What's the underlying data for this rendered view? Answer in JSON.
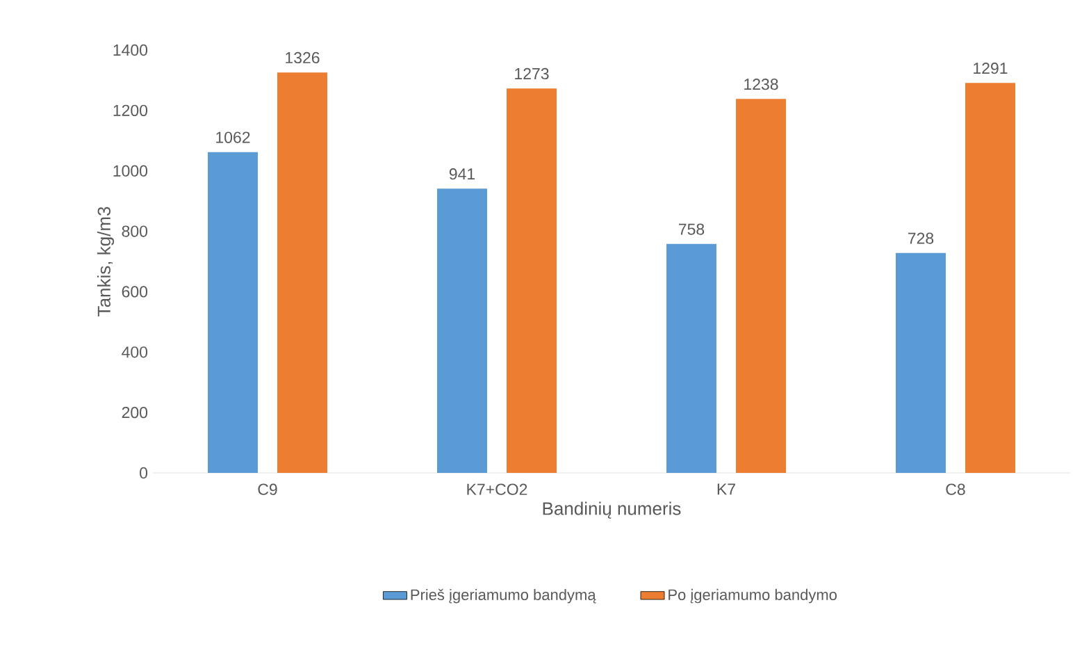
{
  "chart_data": {
    "type": "bar",
    "xlabel": "Bandinių numeris",
    "ylabel": "Tankis, kg/m3",
    "categories": [
      "C9",
      "K7+CO2",
      "K7",
      "C8"
    ],
    "series": [
      {
        "name": "Prieš įgeriamumo bandymą",
        "color": "#5b9bd5",
        "values": [
          1062,
          941,
          758,
          728
        ]
      },
      {
        "name": "Po įgeriamumo bandymo",
        "color": "#ed7d31",
        "values": [
          1326,
          1273,
          1238,
          1291
        ]
      }
    ],
    "ylim": [
      0,
      1400
    ],
    "yticks": [
      0,
      200,
      400,
      600,
      800,
      1000,
      1200,
      1400
    ],
    "data_labels": true,
    "legend": "bottom",
    "grid": false
  }
}
